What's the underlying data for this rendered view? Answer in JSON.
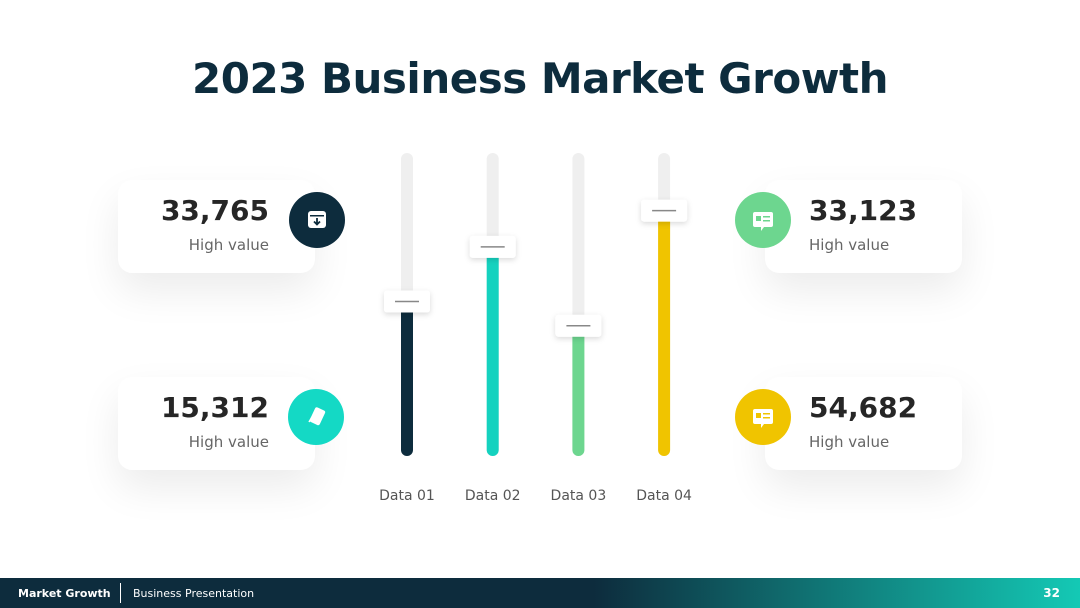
{
  "chart_data": {
    "type": "bar",
    "title": "2023 Business Market Growth",
    "categories": [
      "Data 01",
      "Data 02",
      "Data 03",
      "Data 04"
    ],
    "values": [
      51,
      69,
      43,
      81
    ],
    "colors": [
      "#0d2c3d",
      "#14d2bf",
      "#6dd68f",
      "#f0c400"
    ],
    "ylim": [
      0,
      100
    ]
  },
  "cards": [
    {
      "value": "33,765",
      "label": "High value"
    },
    {
      "value": "15,312",
      "label": "High value"
    },
    {
      "value": "33,123",
      "label": "High value"
    },
    {
      "value": "54,682",
      "label": "High value"
    }
  ],
  "footer": {
    "left": "Market Growth",
    "middle": "Business Presentation",
    "page": "32"
  }
}
